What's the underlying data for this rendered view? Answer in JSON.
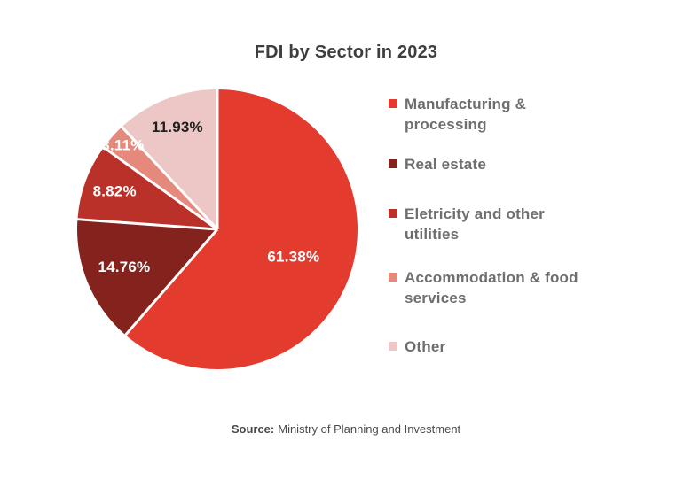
{
  "title": "FDI by Sector in 2023",
  "source": {
    "prefix": "Source:",
    "text": "Ministry of Planning and Investment"
  },
  "colors": {
    "background": "#ffffff",
    "title_text": "#3e3e3e",
    "legend_text": "#6e6e6e",
    "slice_label_light": "#ffffff",
    "slice_label_dark": "#1f1f1f",
    "slice_separator": "#ffffff"
  },
  "chart_data": {
    "type": "pie",
    "title": "FDI by Sector in 2023",
    "start_angle_deg": 0,
    "direction": "clockwise",
    "legend_position": "right",
    "labels_on_slices": true,
    "slices": [
      {
        "label": "Manufacturing & processing",
        "value": 61.38,
        "display": "61.38%",
        "color": "#e43b2f"
      },
      {
        "label": "Real estate",
        "value": 14.76,
        "display": "14.76%",
        "color": "#84231d"
      },
      {
        "label": "Eletricity and other utilities",
        "value": 8.82,
        "display": "8.82%",
        "color": "#b93128"
      },
      {
        "label": "Accommodation & food services",
        "value": 3.11,
        "display": "3.11%",
        "color": "#e5897d"
      },
      {
        "label": "Other",
        "value": 11.93,
        "display": "11.93%",
        "color": "#ecc7c5"
      }
    ]
  }
}
